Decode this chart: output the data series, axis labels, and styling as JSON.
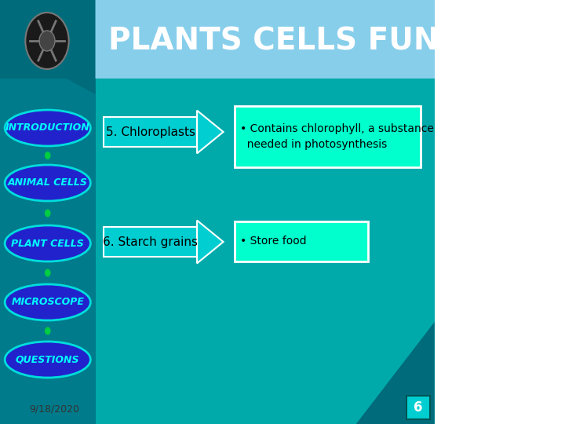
{
  "title": "PLANTS CELLS FUNCTIONS",
  "title_color": "#FFFFFF",
  "title_fontsize": 28,
  "nav_items": [
    "INTRODUCTION",
    "ANIMAL CELLS",
    "PLANT CELLS",
    "MICROSCOPE",
    "QUESTIONS"
  ],
  "nav_ellipse_color": "#2222CC",
  "nav_ellipse_edge": "#00DDDD",
  "nav_text_color": "#00FFFF",
  "arrow1_text": "5. Chloroplasts",
  "arrow2_text": "6. Starch grains",
  "arrow_color": "#00CED1",
  "arrow_edge_color": "#FFFFFF",
  "box1_text": "• Contains chlorophyll, a substance\n  needed in photosynthesis",
  "box2_text": "• Store food",
  "box_color": "#00FFCC",
  "box_edge_color": "#FFFFFF",
  "box_text_color": "#000000",
  "date_text": "9/18/2020",
  "page_num": "6",
  "page_box_color": "#00CED1",
  "connector_color": "#00CC44"
}
